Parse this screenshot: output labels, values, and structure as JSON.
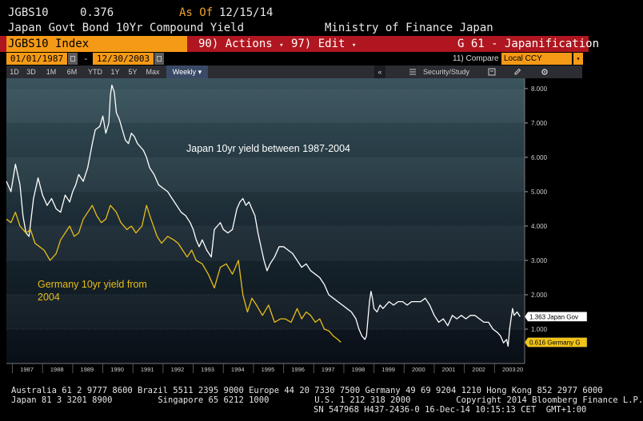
{
  "header": {
    "ticker": "JGBS10",
    "last_value": "0.376",
    "as_of_label": "As Of",
    "as_of_date": "12/15/14",
    "security_title": "Japan Govt Bond 10Yr Compound Yield",
    "source": "Ministry of Finance Japan"
  },
  "command_bar": {
    "ticker_field": "JGBS10 Index",
    "actions_label": "90) Actions",
    "edit_label": "97) Edit",
    "graph_label": "G 61 - Japanification"
  },
  "date_range": {
    "start": "01/01/1987",
    "separator": "-",
    "end": "12/30/2003",
    "compare_label": "11) Compare",
    "currency": "Local CCY"
  },
  "tabs": {
    "periods": [
      "1D",
      "3D",
      "1M",
      "6M",
      "YTD",
      "1Y",
      "5Y",
      "Max"
    ],
    "frequency": "Weekly",
    "collapse": "«",
    "security_study": "Security/Study"
  },
  "colors": {
    "japan_line": "#ffffff",
    "germany_line": "#e6bd1a",
    "command_bar": "#b0161f",
    "accent_orange": "#f59a16"
  },
  "chart_data": {
    "type": "line",
    "x_unit": "year",
    "xlim": [
      1986.8,
      2004.0
    ],
    "ylim": [
      0,
      8.3
    ],
    "y_ticks": [
      "8.000",
      "7.000",
      "6.000",
      "5.000",
      "4.000",
      "3.000",
      "2.000",
      "1.000"
    ],
    "x_ticks": [
      "1987",
      "1988",
      "1989",
      "1990",
      "1991",
      "1992",
      "1993",
      "1994",
      "1995",
      "1996",
      "1997",
      "1998",
      "1999",
      "2000",
      "2001",
      "2002",
      "2003",
      "20"
    ],
    "annotations": {
      "japan": "Japan 10yr yield between 1987-2004",
      "germany_line1": "Germany 10yr yield from",
      "germany_line2": "2004"
    },
    "series": [
      {
        "name": "Japan Gov",
        "last_label": "1.363 Japan Gov",
        "x": [
          1986.8,
          1986.95,
          1987.1,
          1987.25,
          1987.35,
          1987.45,
          1987.55,
          1987.7,
          1987.85,
          1988.0,
          1988.15,
          1988.3,
          1988.45,
          1988.6,
          1988.75,
          1988.9,
          1989.0,
          1989.1,
          1989.2,
          1989.35,
          1989.5,
          1989.65,
          1989.75,
          1989.9,
          1990.0,
          1990.1,
          1990.2,
          1990.25,
          1990.3,
          1990.38,
          1990.45,
          1990.55,
          1990.65,
          1990.75,
          1990.85,
          1990.95,
          1991.05,
          1991.15,
          1991.25,
          1991.35,
          1991.45,
          1991.55,
          1991.7,
          1991.85,
          1992.0,
          1992.15,
          1992.3,
          1992.45,
          1992.6,
          1992.75,
          1992.9,
          1993.0,
          1993.1,
          1993.2,
          1993.3,
          1993.45,
          1993.6,
          1993.7,
          1993.8,
          1993.9,
          1994.0,
          1994.15,
          1994.3,
          1994.45,
          1994.55,
          1994.65,
          1994.75,
          1994.85,
          1994.95,
          1995.05,
          1995.15,
          1995.25,
          1995.35,
          1995.45,
          1995.55,
          1995.7,
          1995.85,
          1996.0,
          1996.15,
          1996.3,
          1996.45,
          1996.6,
          1996.75,
          1996.9,
          1997.05,
          1997.2,
          1997.35,
          1997.5,
          1997.65,
          1997.8,
          1997.95,
          1998.1,
          1998.25,
          1998.4,
          1998.5,
          1998.6,
          1998.7,
          1998.75,
          1998.8,
          1998.85,
          1998.9,
          1998.95,
          1999.0,
          1999.1,
          1999.2,
          1999.3,
          1999.4,
          1999.5,
          1999.65,
          1999.8,
          1999.95,
          2000.1,
          2000.25,
          2000.4,
          2000.55,
          2000.7,
          2000.85,
          2001.0,
          2001.15,
          2001.3,
          2001.45,
          2001.6,
          2001.75,
          2001.9,
          2002.05,
          2002.2,
          2002.35,
          2002.5,
          2002.65,
          2002.8,
          2002.95,
          2003.1,
          2003.2,
          2003.3,
          2003.4,
          2003.45,
          2003.5,
          2003.55,
          2003.6,
          2003.65,
          2003.75,
          2003.85
        ],
        "y": [
          5.3,
          5.0,
          5.8,
          5.2,
          4.3,
          3.8,
          3.7,
          4.8,
          5.4,
          4.9,
          4.6,
          4.8,
          4.5,
          4.4,
          4.9,
          4.7,
          5.0,
          5.2,
          5.5,
          5.3,
          5.7,
          6.4,
          6.8,
          6.9,
          7.2,
          6.7,
          7.0,
          7.8,
          8.1,
          7.9,
          7.3,
          7.1,
          6.8,
          6.5,
          6.4,
          6.7,
          6.6,
          6.4,
          6.3,
          6.2,
          6.0,
          5.7,
          5.5,
          5.2,
          5.1,
          5.0,
          4.8,
          4.6,
          4.4,
          4.3,
          4.1,
          3.9,
          3.6,
          3.4,
          3.6,
          3.3,
          3.1,
          3.9,
          4.0,
          4.1,
          3.9,
          3.8,
          3.9,
          4.5,
          4.7,
          4.8,
          4.6,
          4.7,
          4.5,
          4.3,
          3.8,
          3.4,
          3.0,
          2.7,
          2.9,
          3.1,
          3.4,
          3.4,
          3.3,
          3.2,
          3.0,
          2.8,
          2.9,
          2.7,
          2.6,
          2.5,
          2.3,
          2.0,
          1.9,
          1.8,
          1.7,
          1.6,
          1.5,
          1.3,
          1.0,
          0.8,
          0.7,
          0.8,
          1.3,
          1.8,
          2.1,
          1.9,
          1.6,
          1.5,
          1.7,
          1.6,
          1.7,
          1.8,
          1.7,
          1.8,
          1.8,
          1.7,
          1.8,
          1.8,
          1.8,
          1.9,
          1.7,
          1.4,
          1.2,
          1.3,
          1.1,
          1.4,
          1.3,
          1.4,
          1.3,
          1.4,
          1.4,
          1.3,
          1.2,
          1.2,
          1.0,
          0.9,
          0.8,
          0.6,
          0.7,
          0.5,
          1.0,
          1.3,
          1.6,
          1.4,
          1.5,
          1.363
        ]
      },
      {
        "name": "Germany G",
        "last_label": "0.616 Germany G",
        "x": [
          1986.8,
          1986.95,
          1987.1,
          1987.25,
          1987.45,
          1987.6,
          1987.75,
          1987.9,
          1988.05,
          1988.25,
          1988.45,
          1988.6,
          1988.75,
          1988.9,
          1989.05,
          1989.2,
          1989.35,
          1989.5,
          1989.65,
          1989.8,
          1989.95,
          1990.1,
          1990.25,
          1990.45,
          1990.6,
          1990.8,
          1990.95,
          1991.1,
          1991.3,
          1991.45,
          1991.6,
          1991.8,
          1991.95,
          1992.15,
          1992.35,
          1992.5,
          1992.65,
          1992.8,
          1992.95,
          1993.1,
          1993.3,
          1993.5,
          1993.7,
          1993.9,
          1994.1,
          1994.3,
          1994.5,
          1994.65,
          1994.8,
          1994.95,
          1995.1,
          1995.3,
          1995.5,
          1995.7,
          1995.9,
          1996.05,
          1996.25,
          1996.45,
          1996.6,
          1996.75,
          1996.9,
          1997.05,
          1997.2,
          1997.35,
          1997.5,
          1997.65,
          1997.8,
          1997.9
        ],
        "y": [
          4.2,
          4.1,
          4.4,
          4.0,
          3.8,
          3.9,
          3.5,
          3.4,
          3.3,
          3.0,
          3.2,
          3.6,
          3.8,
          4.0,
          3.7,
          3.8,
          4.2,
          4.4,
          4.6,
          4.3,
          4.1,
          4.2,
          4.6,
          4.4,
          4.1,
          3.9,
          4.0,
          3.8,
          4.0,
          4.6,
          4.2,
          3.7,
          3.5,
          3.7,
          3.6,
          3.5,
          3.3,
          3.1,
          3.3,
          3.0,
          2.9,
          2.6,
          2.2,
          2.8,
          2.9,
          2.6,
          3.0,
          2.0,
          1.5,
          1.9,
          1.7,
          1.4,
          1.7,
          1.2,
          1.3,
          1.3,
          1.2,
          1.6,
          1.3,
          1.5,
          1.4,
          1.2,
          1.3,
          1.0,
          0.95,
          0.8,
          0.7,
          0.616
        ]
      }
    ]
  },
  "footer": {
    "line1": "Australia 61 2 9777 8600 Brazil 5511 2395 9000 Europe 44 20 7330 7500 Germany 49 69 9204 1210 Hong Kong 852 2977 6000",
    "line2": "Japan 81 3 3201 8900         Singapore 65 6212 1000         U.S. 1 212 318 2000         Copyright 2014 Bloomberg Finance L.P.",
    "line3": "SN 547968 H437-2436-0 16-Dec-14 10:15:13 CET  GMT+1:00"
  }
}
